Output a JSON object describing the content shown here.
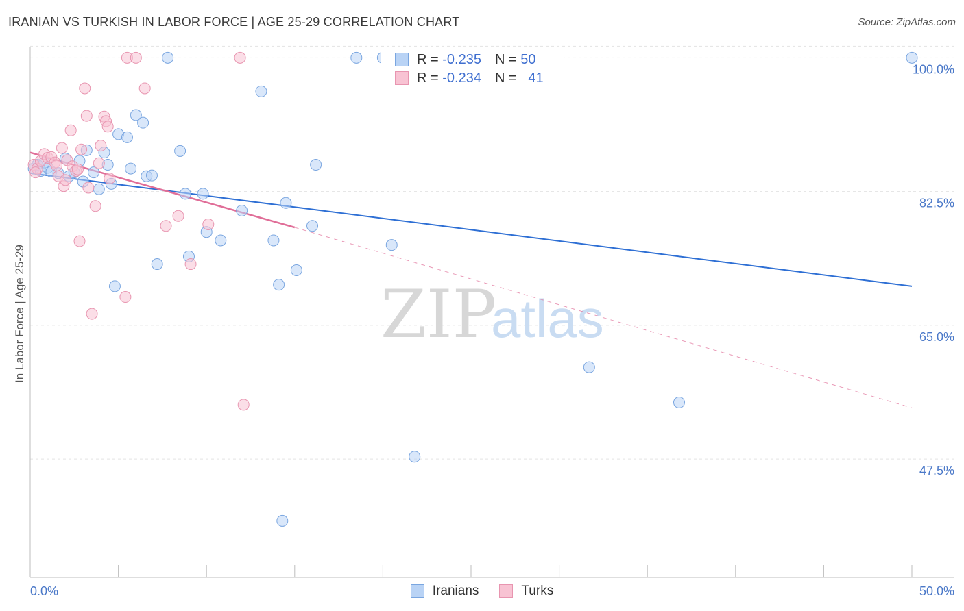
{
  "title": "IRANIAN VS TURKISH IN LABOR FORCE | AGE 25-29 CORRELATION CHART",
  "source": "Source: ZipAtlas.com",
  "colors": {
    "iranians_fill": "#b9d3f5",
    "iranians_stroke": "#7aa6e0",
    "iranians_line": "#2e6fd4",
    "turks_fill": "#f8c3d3",
    "turks_stroke": "#e895b0",
    "turks_line": "#e06e98",
    "tick_text": "#4a78c8",
    "grid": "#e3e3e3"
  },
  "legend": {
    "iranians": {
      "r_label": "R =",
      "r_value": "-0.235",
      "n_label": "N =",
      "n_value": "50"
    },
    "turks": {
      "r_label": "R =",
      "r_value": "-0.234",
      "n_label": "N =",
      "n_value": "41"
    }
  },
  "chart_data": {
    "type": "scatter",
    "title": "IRANIAN VS TURKISH IN LABOR FORCE | AGE 25-29 CORRELATION CHART",
    "xlabel": "",
    "ylabel": "In Labor Force | Age 25-29",
    "xlim": [
      0,
      50
    ],
    "ylim": [
      32,
      102
    ],
    "x_tick_labels": [
      {
        "value": 0,
        "label": "0.0%"
      },
      {
        "value": 50,
        "label": "50.0%"
      }
    ],
    "y_ticks": [
      {
        "value": 100,
        "label": "100.0%"
      },
      {
        "value": 82.5,
        "label": "82.5%"
      },
      {
        "value": 65,
        "label": "65.0%"
      },
      {
        "value": 47.5,
        "label": "47.5%"
      }
    ],
    "watermark": {
      "zip": "ZIP",
      "atlas": "atlas"
    },
    "series": [
      {
        "name": "Iranians",
        "points": [
          [
            0.2,
            85.5
          ],
          [
            0.4,
            86
          ],
          [
            0.6,
            85.2
          ],
          [
            0.8,
            86.3
          ],
          [
            1.0,
            85.6
          ],
          [
            1.2,
            85.1
          ],
          [
            1.6,
            84.9
          ],
          [
            2.0,
            86.8
          ],
          [
            2.2,
            84.5
          ],
          [
            2.5,
            85
          ],
          [
            2.8,
            86.5
          ],
          [
            3.0,
            83.8
          ],
          [
            3.2,
            87.9
          ],
          [
            3.6,
            85
          ],
          [
            3.9,
            82.8
          ],
          [
            4.2,
            87.6
          ],
          [
            4.4,
            86
          ],
          [
            4.6,
            83.5
          ],
          [
            4.8,
            70.1
          ],
          [
            5.0,
            90
          ],
          [
            5.5,
            89.6
          ],
          [
            5.7,
            85.5
          ],
          [
            6.0,
            92.5
          ],
          [
            6.4,
            91.5
          ],
          [
            6.6,
            84.5
          ],
          [
            6.9,
            84.6
          ],
          [
            7.2,
            73
          ],
          [
            7.8,
            100
          ],
          [
            8.5,
            87.8
          ],
          [
            8.8,
            82.2
          ],
          [
            9.0,
            74
          ],
          [
            9.8,
            82.2
          ],
          [
            10.0,
            77.2
          ],
          [
            10.8,
            76.1
          ],
          [
            12.0,
            80
          ],
          [
            13.1,
            95.6
          ],
          [
            13.8,
            76.1
          ],
          [
            14.1,
            70.3
          ],
          [
            14.3,
            39.4
          ],
          [
            14.5,
            81
          ],
          [
            15.1,
            72.2
          ],
          [
            16.0,
            78
          ],
          [
            16.2,
            86
          ],
          [
            18.5,
            100
          ],
          [
            20.0,
            100
          ],
          [
            20.5,
            75.5
          ],
          [
            21.8,
            47.8
          ],
          [
            31.7,
            59.5
          ],
          [
            36.8,
            54.9
          ],
          [
            50,
            100
          ]
        ],
        "trend": {
          "x": [
            0,
            50
          ],
          "y": [
            84.9,
            70.1
          ]
        }
      },
      {
        "name": "Turks",
        "points": [
          [
            0.2,
            86
          ],
          [
            0.4,
            85.5
          ],
          [
            0.6,
            86.5
          ],
          [
            0.8,
            87.4
          ],
          [
            1.0,
            86.9
          ],
          [
            1.2,
            87
          ],
          [
            1.4,
            86.3
          ],
          [
            1.6,
            84.5
          ],
          [
            1.8,
            88.2
          ],
          [
            1.9,
            83.2
          ],
          [
            2.0,
            84
          ],
          [
            2.1,
            86.6
          ],
          [
            2.3,
            90.5
          ],
          [
            2.4,
            85.8
          ],
          [
            2.6,
            85.2
          ],
          [
            2.8,
            76
          ],
          [
            2.9,
            88
          ],
          [
            3.1,
            96
          ],
          [
            3.2,
            92.4
          ],
          [
            3.3,
            83
          ],
          [
            3.7,
            80.6
          ],
          [
            3.9,
            86.2
          ],
          [
            4.0,
            88.5
          ],
          [
            4.2,
            92.3
          ],
          [
            4.3,
            91.7
          ],
          [
            4.4,
            91
          ],
          [
            4.5,
            84.2
          ],
          [
            5.4,
            68.7
          ],
          [
            3.5,
            66.5
          ],
          [
            5.5,
            100
          ],
          [
            6.0,
            100
          ],
          [
            6.5,
            96
          ],
          [
            7.7,
            78
          ],
          [
            8.4,
            79.3
          ],
          [
            9.1,
            73
          ],
          [
            10.1,
            78.2
          ],
          [
            11.9,
            100
          ],
          [
            12.1,
            54.6
          ],
          [
            0.3,
            85
          ],
          [
            1.5,
            85.9
          ],
          [
            2.7,
            85.4
          ]
        ],
        "trend": {
          "x": [
            0,
            15
          ],
          "y": [
            87.6,
            77.8
          ]
        },
        "trend_dashed": {
          "x": [
            15,
            50
          ],
          "y": [
            77.8,
            54.2
          ]
        }
      }
    ]
  }
}
